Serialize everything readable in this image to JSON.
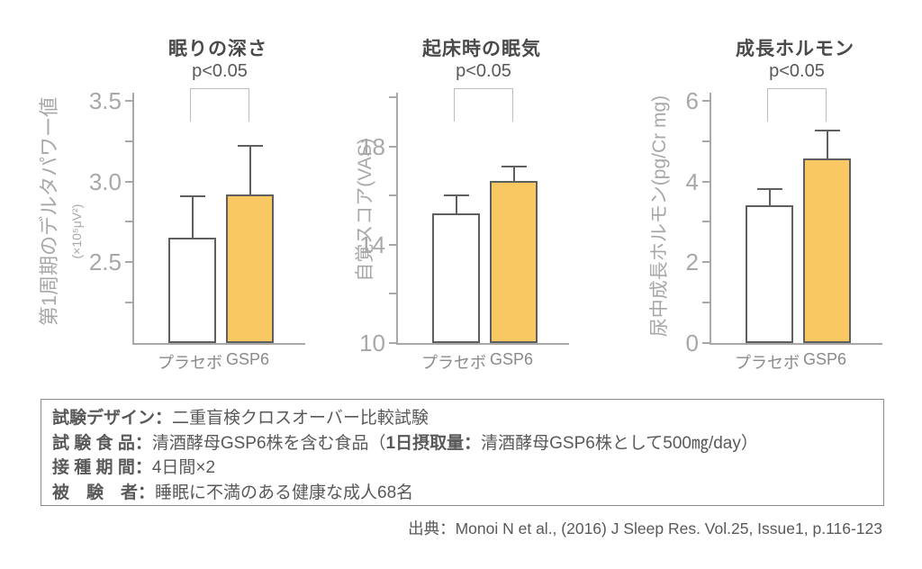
{
  "chart_data": [
    {
      "type": "bar",
      "title": "眠りの深さ",
      "p_label": "p<0.05",
      "ylabel": "第1周期のデルタパワー値",
      "ylabel_sub": "(×10⁵μV²)",
      "categories": [
        "プラセボ",
        "GSP6"
      ],
      "values": [
        2.65,
        2.92
      ],
      "errors_up": [
        0.26,
        0.3
      ],
      "ylim": [
        2.0,
        3.55
      ],
      "yticks": [
        2.5,
        3.0,
        3.5
      ],
      "ytick_labels": [
        "2.5",
        "3.0",
        "3.5"
      ],
      "minor_yticks": [
        2.25,
        2.75,
        3.25
      ],
      "bar_colors": [
        "#ffffff",
        "#fac863"
      ],
      "legend_position": "none",
      "grid": false
    },
    {
      "type": "bar",
      "title": "起床時の眠気",
      "p_label": "p<0.05",
      "ylabel": "自覚スコア(VAS)",
      "categories": [
        "プラセボ",
        "GSP6"
      ],
      "values": [
        15.3,
        16.6
      ],
      "errors_up": [
        0.7,
        0.6
      ],
      "ylim": [
        10,
        20.2
      ],
      "yticks": [
        10,
        14,
        18
      ],
      "ytick_labels": [
        "10",
        "14",
        "18"
      ],
      "minor_yticks": [
        12,
        16,
        20
      ],
      "bar_colors": [
        "#ffffff",
        "#fac863"
      ],
      "legend_position": "none",
      "grid": false
    },
    {
      "type": "bar",
      "title": "成長ホルモン",
      "p_label": "p<0.05",
      "ylabel": "尿中成長ホルモン(pg/Cr mg)",
      "categories": [
        "プラセボ",
        "GSP6"
      ],
      "values": [
        3.42,
        4.58
      ],
      "errors_up": [
        0.4,
        0.68
      ],
      "ylim": [
        0,
        6.2
      ],
      "yticks": [
        0,
        2,
        4,
        6
      ],
      "ytick_labels": [
        "0",
        "2",
        "4",
        "6"
      ],
      "minor_yticks": [
        1,
        3,
        5
      ],
      "bar_colors": [
        "#ffffff",
        "#fac863"
      ],
      "legend_position": "none",
      "grid": false
    }
  ],
  "info_box": {
    "lines": [
      {
        "label": "試験デザイン：",
        "pre": "二重盲検クロスオーバー比較試験",
        "bold": "",
        "post": ""
      },
      {
        "label": "試 験 食 品：",
        "pre": "清酒酵母GSP6株を含む食品（",
        "bold": "1日摂取量：",
        "post": "清酒酵母GSP6株として500㎎/day）"
      },
      {
        "label": "接 種 期 間：",
        "pre": "4日間×2",
        "bold": "",
        "post": ""
      },
      {
        "label": "被　験　者：",
        "pre": "睡眠に不満のある健康な成人68名",
        "bold": "",
        "post": ""
      }
    ]
  },
  "citation": "出典：Monoi N et al., (2016) J Sleep Res. Vol.25, Issue1, p.116-123",
  "colors": {
    "accent_bar": "#fac863",
    "bar_outline": "#5f5f5f",
    "axis": "#a8a8a8",
    "title_text": "#4a4a4a",
    "body_text": "#595959",
    "bracket": "#bdbdbd"
  }
}
